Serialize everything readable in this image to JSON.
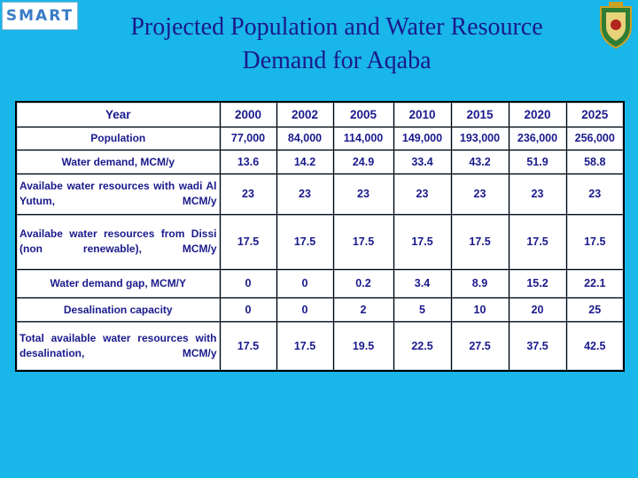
{
  "logo": {
    "text": "SMART"
  },
  "title": {
    "line1": "Projected Population and Water Resource",
    "line2": "Demand for Aqaba"
  },
  "table": {
    "header": {
      "label": "Year",
      "years": [
        "2000",
        "2002",
        "2005",
        "2010",
        "2015",
        "2020",
        "2025"
      ]
    },
    "rows": [
      {
        "label": "Population",
        "values": [
          "77,000",
          "84,000",
          "114,000",
          "149,000",
          "193,000",
          "236,000",
          "256,000"
        ]
      },
      {
        "label": "Water demand, MCM/y",
        "values": [
          "13.6",
          "14.2",
          "24.9",
          "33.4",
          "43.2",
          "51.9",
          "58.8"
        ]
      },
      {
        "label": "Availabe water resources with wadi Al Yutum, MCM/y",
        "values": [
          "23",
          "23",
          "23",
          "23",
          "23",
          "23",
          "23"
        ]
      },
      {
        "label": "Availabe water resources from Dissi (non renewable), MCM/y",
        "values": [
          "17.5",
          "17.5",
          "17.5",
          "17.5",
          "17.5",
          "17.5",
          "17.5"
        ]
      },
      {
        "label": "Water demand gap, MCM/Y",
        "values": [
          "0",
          "0",
          "0.2",
          "3.4",
          "8.9",
          "15.2",
          "22.1"
        ]
      },
      {
        "label": "Desalination capacity",
        "values": [
          "0",
          "0",
          "2",
          "5",
          "10",
          "20",
          "25"
        ]
      },
      {
        "label": "Total available water resources with desalination, MCM/y",
        "values": [
          "17.5",
          "17.5",
          "19.5",
          "22.5",
          "27.5",
          "37.5",
          "42.5"
        ]
      }
    ]
  },
  "colors": {
    "background": "#19b6e9",
    "title": "#1a1a8c",
    "table_text": "#1a1a8c"
  }
}
